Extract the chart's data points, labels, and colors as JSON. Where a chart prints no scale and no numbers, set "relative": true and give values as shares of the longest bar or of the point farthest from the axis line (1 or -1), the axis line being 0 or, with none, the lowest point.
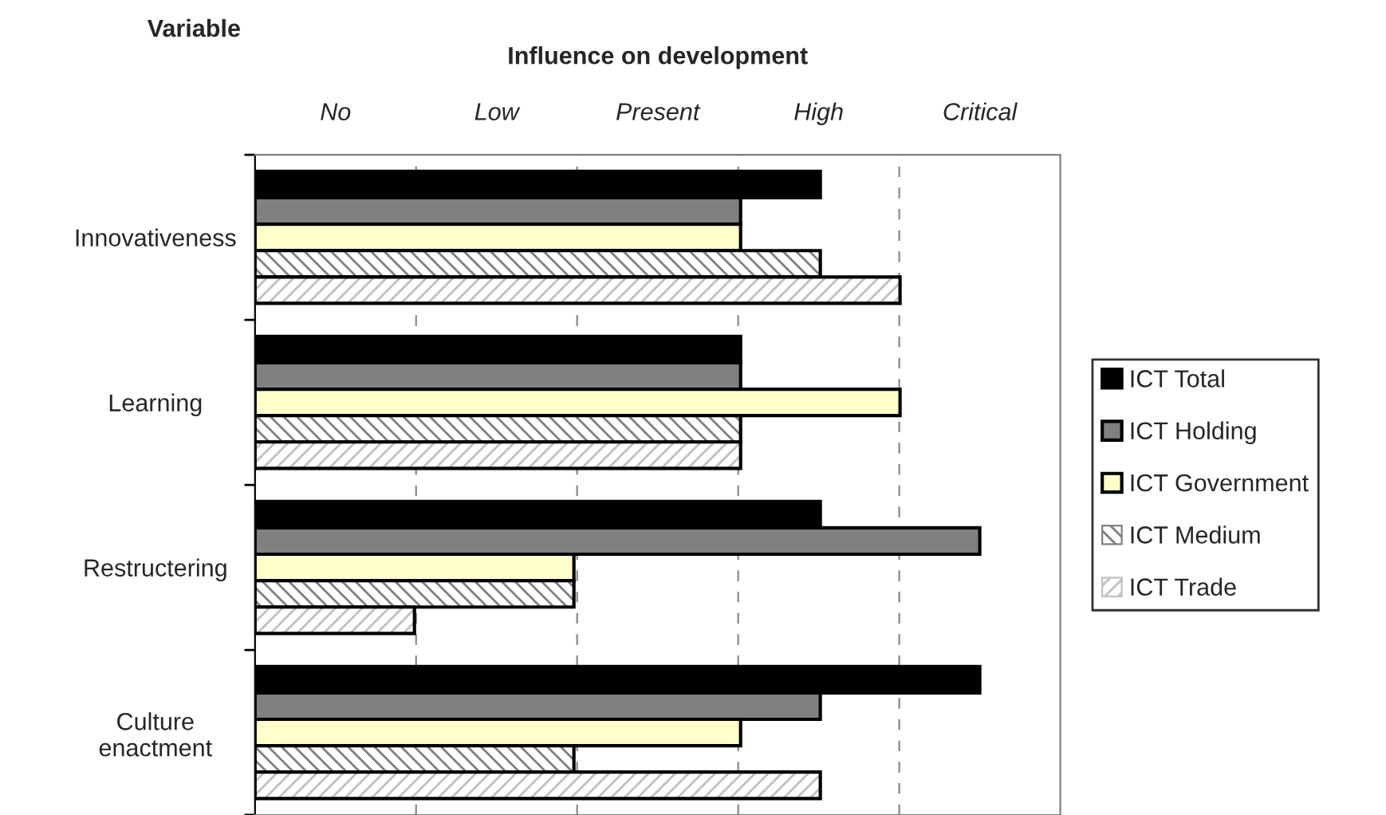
{
  "chart_data": {
    "type": "bar",
    "orientation": "horizontal",
    "relative": true,
    "ylabel": "Variable",
    "xlabel": "Influence on development",
    "categories": [
      "Innovativeness",
      "Learning",
      "Restructering",
      "Culture\nenactment"
    ],
    "series": [
      {
        "name": "ICT Total",
        "color": "#000000",
        "values": [
          0.78,
          0.67,
          0.78,
          1
        ]
      },
      {
        "name": "ICT Holding",
        "color": "#808080",
        "values": [
          0.67,
          0.67,
          1,
          0.78
        ]
      },
      {
        "name": "ICT Government",
        "color": "#ffffcc",
        "values": [
          0.67,
          0.89,
          0.44,
          0.67
        ]
      },
      {
        "name": "ICT Medium",
        "color": "#808080",
        "values": [
          0.78,
          0.67,
          0.44,
          0.44
        ]
      },
      {
        "name": "ICT Trade",
        "color": "#c0c0c0",
        "values": [
          0.89,
          0.67,
          0.22,
          0.78
        ]
      }
    ],
    "annotations": [
      "No",
      "Low",
      "Present",
      "High",
      "Critical"
    ],
    "grid": "x",
    "legend": "right"
  }
}
